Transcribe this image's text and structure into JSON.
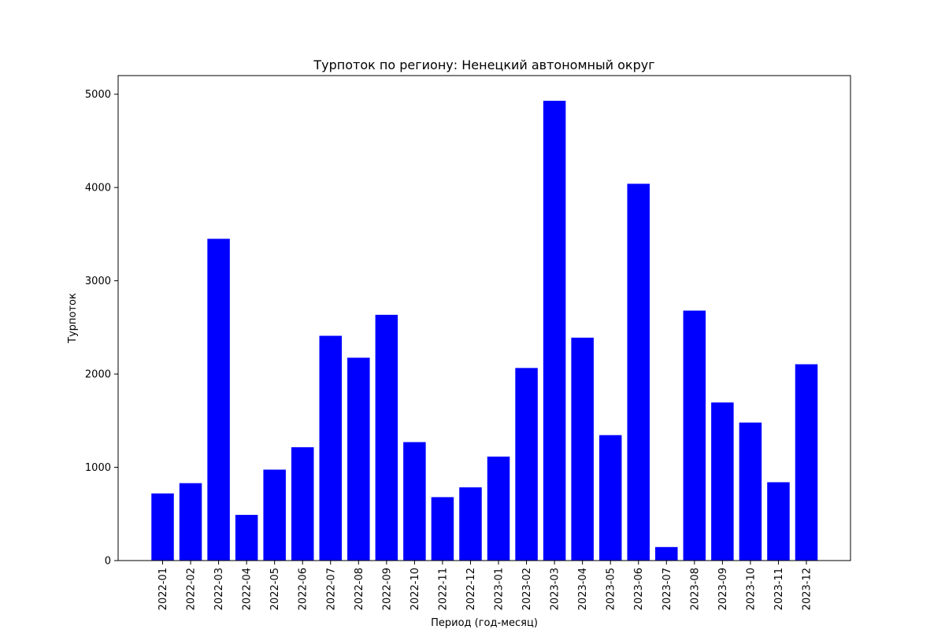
{
  "chart_data": {
    "type": "bar",
    "title": "Турпоток по региону: Ненецкий автономный округ",
    "xlabel": "Период (год-месяц)",
    "ylabel": "Турпоток",
    "ylim": [
      0,
      5200
    ],
    "yticks": [
      0,
      1000,
      2000,
      3000,
      4000,
      5000
    ],
    "grid": false,
    "bar_color": "#0000ff",
    "categories": [
      "2022-01",
      "2022-02",
      "2022-03",
      "2022-04",
      "2022-05",
      "2022-06",
      "2022-07",
      "2022-08",
      "2022-09",
      "2022-10",
      "2022-11",
      "2022-12",
      "2023-01",
      "2023-02",
      "2023-03",
      "2023-04",
      "2023-05",
      "2023-06",
      "2023-07",
      "2023-08",
      "2023-09",
      "2023-10",
      "2023-11",
      "2023-12"
    ],
    "values": [
      720,
      830,
      3450,
      490,
      975,
      1215,
      2410,
      2175,
      2635,
      1270,
      680,
      785,
      1115,
      2065,
      4930,
      2390,
      1345,
      4040,
      145,
      2680,
      1695,
      1480,
      840,
      2105
    ]
  }
}
